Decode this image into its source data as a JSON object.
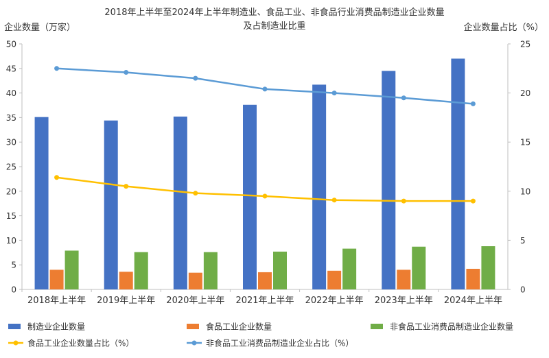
{
  "chart_data": {
    "type": "bar",
    "title": "2018年上半年至2024年上半年制造业、食品工业、非食品行业消费品制造业企业数量",
    "subtitle": "及占制造业比重",
    "ylabel": "企业数量（万家）",
    "y2label": "企业数量占比（%）",
    "ylim": [
      0,
      50
    ],
    "y2lim": [
      0,
      25
    ],
    "yticks": [
      "0",
      "5",
      "10",
      "15",
      "20",
      "25",
      "30",
      "35",
      "40",
      "45",
      "50"
    ],
    "y2ticks": [
      "0",
      "5",
      "10",
      "15",
      "20",
      "25"
    ],
    "grid": false,
    "legend_position": "bottom",
    "categories": [
      "2018年上半年",
      "2019年上半年",
      "2020年上半年",
      "2021年上半年",
      "2022年上半年",
      "2023年上半年",
      "2024年上半年"
    ],
    "bar_series": [
      {
        "name": "制造业企业数量",
        "color": "#4472C4",
        "values": [
          35.1,
          34.4,
          35.2,
          37.6,
          41.7,
          44.5,
          47.0
        ]
      },
      {
        "name": "食品工业企业数量",
        "color": "#ED7D31",
        "values": [
          4.0,
          3.6,
          3.4,
          3.5,
          3.8,
          4.0,
          4.2
        ]
      },
      {
        "name": "非食品工业消费品制造业企业数量",
        "color": "#70AD47",
        "values": [
          7.9,
          7.6,
          7.6,
          7.7,
          8.3,
          8.7,
          8.8
        ]
      }
    ],
    "line_series": [
      {
        "name": "食品工业企业数量占比（%）",
        "color": "#FFC000",
        "axis": "right",
        "values": [
          11.4,
          10.5,
          9.8,
          9.5,
          9.1,
          9.0,
          9.0
        ]
      },
      {
        "name": "非食品工业消费品制造业企业占比（%）",
        "color": "#5B9BD5",
        "axis": "right",
        "values": [
          22.5,
          22.1,
          21.5,
          20.4,
          20.0,
          19.5,
          18.9
        ]
      }
    ]
  }
}
